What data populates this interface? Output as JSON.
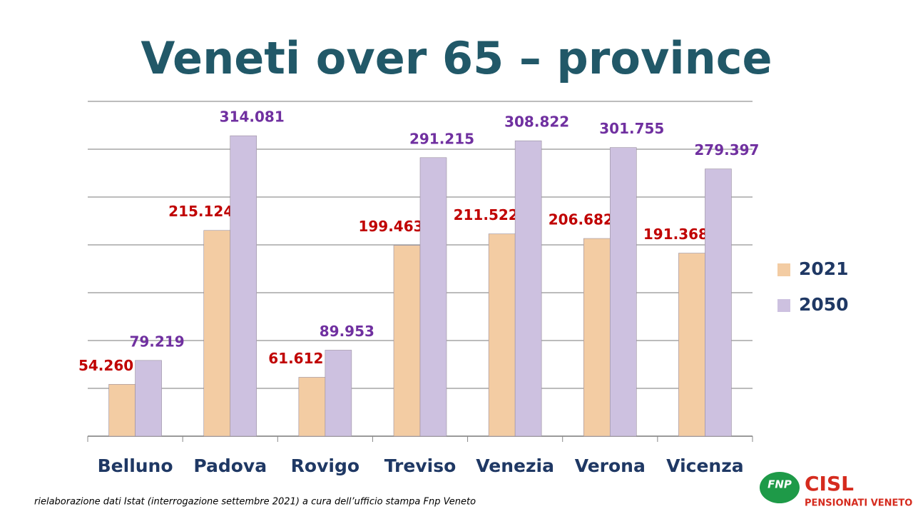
{
  "chart_data": {
    "type": "bar",
    "title": "Veneti over 65 – province",
    "categories": [
      "Belluno",
      "Padova",
      "Rovigo",
      "Treviso",
      "Venezia",
      "Verona",
      "Vicenza"
    ],
    "series": [
      {
        "name": "2021",
        "color": "#f3cca3",
        "label_color": "#c00000",
        "values": [
          54260,
          215124,
          61612,
          199463,
          211522,
          206682,
          191368
        ],
        "value_labels": [
          "54.260",
          "215.124",
          "61.612",
          "199.463",
          "211.522",
          "206.682",
          "191.368"
        ]
      },
      {
        "name": "2050",
        "color": "#cdc1e0",
        "label_color": "#7030a0",
        "values": [
          79219,
          314081,
          89953,
          291215,
          308822,
          301755,
          279397
        ],
        "value_labels": [
          "79.219",
          "314.081",
          "89.953",
          "291.215",
          "308.822",
          "301.755",
          "279.397"
        ]
      }
    ],
    "ylim": [
      0,
      350000
    ],
    "yticks": [
      0,
      50000,
      100000,
      150000,
      200000,
      250000,
      300000,
      350000
    ],
    "grid": true,
    "legend": "right"
  },
  "footnote": "rielaborazione dati Istat (interrogazione settembre 2021) a cura dell’ufficio stampa Fnp Veneto",
  "logo": {
    "badge": "FNP",
    "name": "CISL",
    "subtitle": "PENSIONATI VENETO"
  }
}
